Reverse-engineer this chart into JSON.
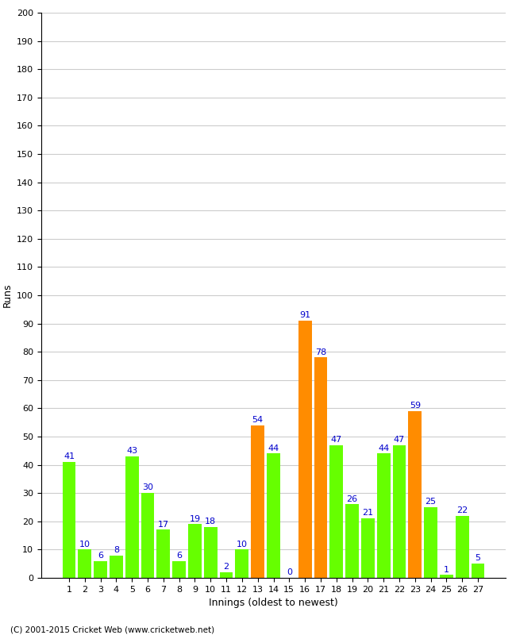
{
  "title": "",
  "xlabel": "Innings (oldest to newest)",
  "ylabel": "Runs",
  "values": [
    41,
    10,
    6,
    8,
    43,
    30,
    17,
    6,
    19,
    18,
    2,
    10,
    54,
    44,
    0,
    91,
    78,
    47,
    26,
    21,
    44,
    47,
    59,
    25,
    1,
    22,
    5
  ],
  "innings": [
    1,
    2,
    3,
    4,
    5,
    6,
    7,
    8,
    9,
    10,
    11,
    12,
    13,
    14,
    15,
    16,
    17,
    18,
    19,
    20,
    21,
    22,
    23,
    24,
    25,
    26,
    27
  ],
  "orange_innings": [
    13,
    16,
    17,
    23
  ],
  "bar_color_default": "#66ff00",
  "bar_color_highlight": "#ff8c00",
  "label_color": "#0000cc",
  "background_color": "#ffffff",
  "ylim": [
    0,
    200
  ],
  "yticks": [
    0,
    10,
    20,
    30,
    40,
    50,
    60,
    70,
    80,
    90,
    100,
    110,
    120,
    130,
    140,
    150,
    160,
    170,
    180,
    190,
    200
  ],
  "grid_color": "#cccccc",
  "label_fontsize": 8,
  "axis_label_fontsize": 9,
  "tick_fontsize": 8,
  "footer": "(C) 2001-2015 Cricket Web (www.cricketweb.net)"
}
